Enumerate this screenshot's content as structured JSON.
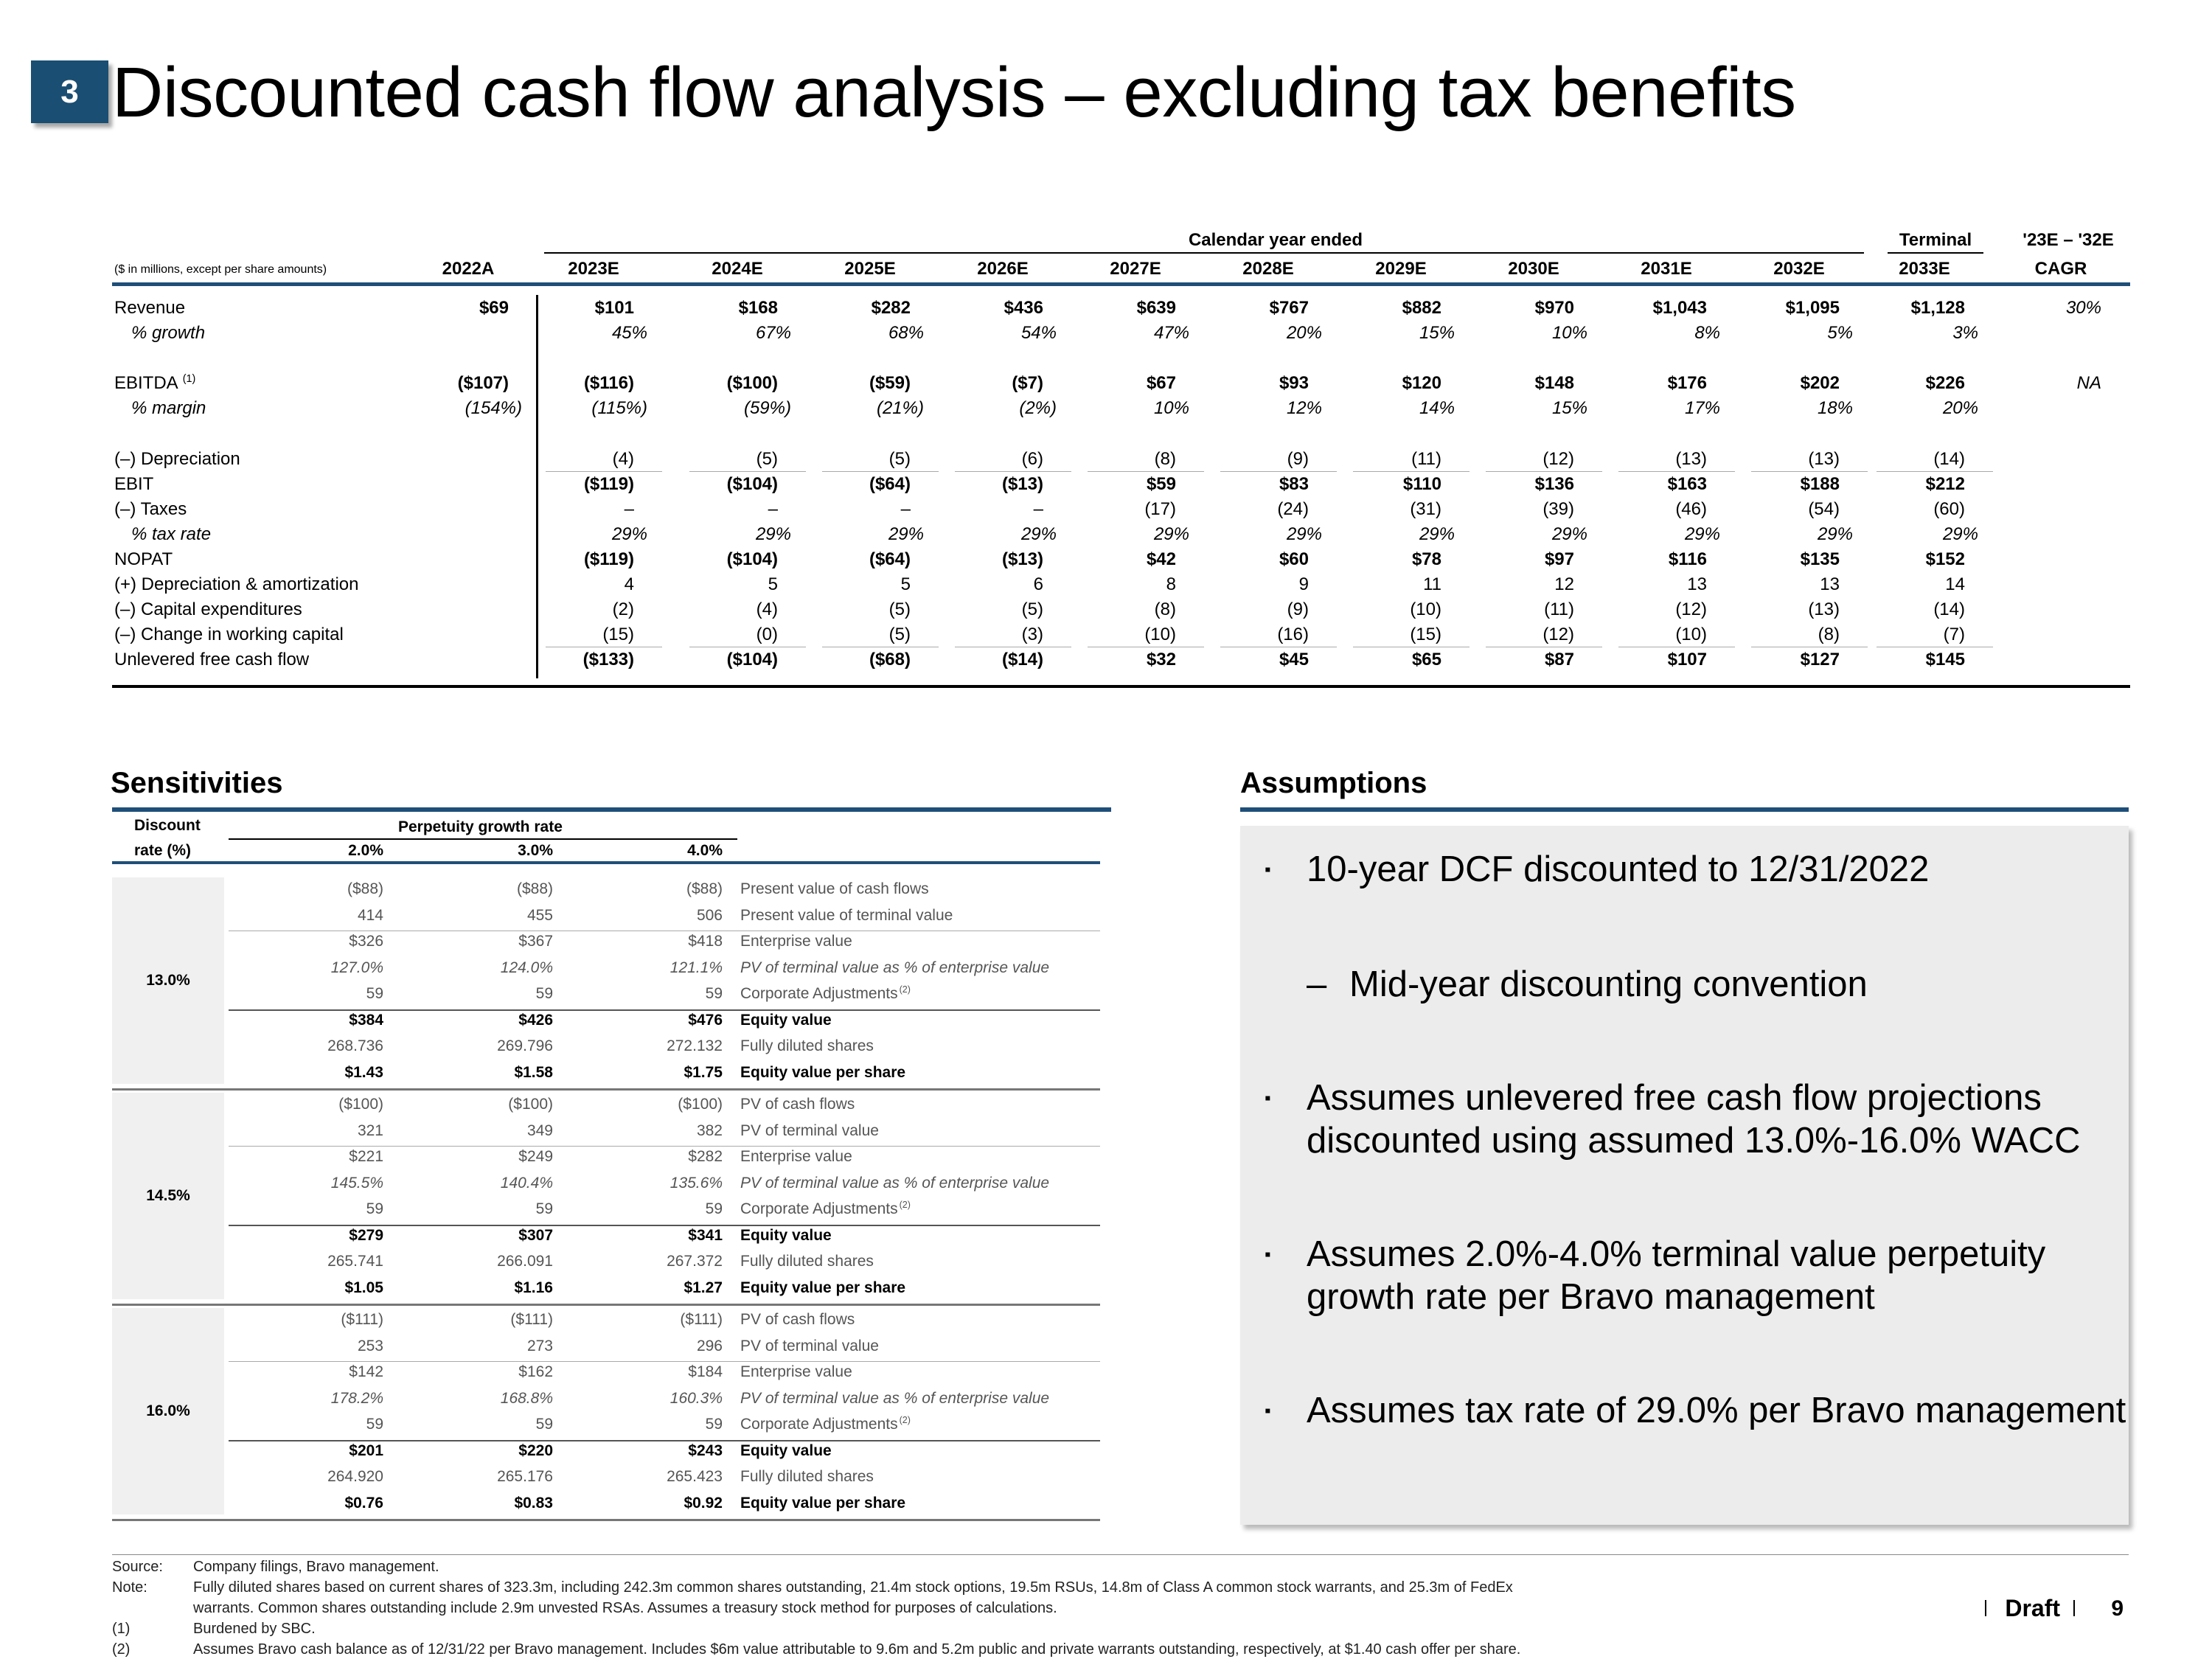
{
  "header": {
    "section_number": "3",
    "title": "Discounted cash flow analysis – excluding tax benefits"
  },
  "dcf": {
    "group_header": "Calendar year ended",
    "terminal_header": "Terminal",
    "cagr_header": "'23E – '32E",
    "units_note": "($ in millions, except per share amounts)",
    "columns": [
      "2022A",
      "2023E",
      "2024E",
      "2025E",
      "2026E",
      "2027E",
      "2028E",
      "2029E",
      "2030E",
      "2031E",
      "2032E",
      "2033E",
      "CAGR"
    ],
    "rows": [
      {
        "label": "Revenue",
        "style": "normal",
        "values": [
          "$69",
          "$101",
          "$168",
          "$282",
          "$436",
          "$639",
          "$767",
          "$882",
          "$970",
          "$1,043",
          "$1,095",
          "$1,128",
          "30%"
        ]
      },
      {
        "label": "% growth",
        "style": "italic",
        "values": [
          "",
          "45%",
          "67%",
          "68%",
          "54%",
          "47%",
          "20%",
          "15%",
          "10%",
          "8%",
          "5%",
          "3%",
          ""
        ]
      },
      {
        "label": "EBITDA",
        "note": "(1)",
        "style": "normal",
        "values": [
          "($107)",
          "($116)",
          "($100)",
          "($59)",
          "($7)",
          "$67",
          "$93",
          "$120",
          "$148",
          "$176",
          "$202",
          "$226",
          "NA"
        ]
      },
      {
        "label": "% margin",
        "style": "italic",
        "values": [
          "(154%)",
          "(115%)",
          "(59%)",
          "(21%)",
          "(2%)",
          "10%",
          "12%",
          "14%",
          "15%",
          "17%",
          "18%",
          "20%",
          ""
        ]
      },
      {
        "label": "(–) Depreciation",
        "style": "normal",
        "values": [
          "",
          "(4)",
          "(5)",
          "(5)",
          "(6)",
          "(8)",
          "(9)",
          "(11)",
          "(12)",
          "(13)",
          "(13)",
          "(14)",
          ""
        ]
      },
      {
        "label": "EBIT",
        "style": "normal",
        "values": [
          "",
          "($119)",
          "($104)",
          "($64)",
          "($13)",
          "$59",
          "$83",
          "$110",
          "$136",
          "$163",
          "$188",
          "$212",
          ""
        ]
      },
      {
        "label": "(–) Taxes",
        "style": "normal",
        "values": [
          "",
          "–",
          "–",
          "–",
          "–",
          "(17)",
          "(24)",
          "(31)",
          "(39)",
          "(46)",
          "(54)",
          "(60)",
          ""
        ]
      },
      {
        "label": "% tax rate",
        "style": "italic",
        "values": [
          "",
          "29%",
          "29%",
          "29%",
          "29%",
          "29%",
          "29%",
          "29%",
          "29%",
          "29%",
          "29%",
          "29%",
          ""
        ]
      },
      {
        "label": "NOPAT",
        "style": "normal",
        "values": [
          "",
          "($119)",
          "($104)",
          "($64)",
          "($13)",
          "$42",
          "$60",
          "$78",
          "$97",
          "$116",
          "$135",
          "$152",
          ""
        ]
      },
      {
        "label": "(+) Depreciation & amortization",
        "style": "normal",
        "values": [
          "",
          "4",
          "5",
          "5",
          "6",
          "8",
          "9",
          "11",
          "12",
          "13",
          "13",
          "14",
          ""
        ]
      },
      {
        "label": "(–) Capital expenditures",
        "style": "normal",
        "values": [
          "",
          "(2)",
          "(4)",
          "(5)",
          "(5)",
          "(8)",
          "(9)",
          "(10)",
          "(11)",
          "(12)",
          "(13)",
          "(14)",
          ""
        ]
      },
      {
        "label": "(–) Change in working capital",
        "style": "normal",
        "values": [
          "",
          "(15)",
          "(0)",
          "(5)",
          "(3)",
          "(10)",
          "(16)",
          "(15)",
          "(12)",
          "(10)",
          "(8)",
          "(7)",
          ""
        ]
      },
      {
        "label": "Unlevered free cash flow",
        "style": "normal",
        "values": [
          "",
          "($133)",
          "($104)",
          "($68)",
          "($14)",
          "$32",
          "$45",
          "$65",
          "$87",
          "$107",
          "$127",
          "$145",
          ""
        ]
      }
    ]
  },
  "sensitivities": {
    "title": "Sensitivities",
    "discount_label_1": "Discount",
    "discount_label_2": "rate (%)",
    "pgr_label": "Perpetuity growth rate",
    "growth_rates": [
      "2.0%",
      "3.0%",
      "4.0%"
    ],
    "blocks": [
      {
        "rate": "13.0%",
        "rows": [
          {
            "values": [
              "($88)",
              "($88)",
              "($88)"
            ],
            "label": "Present value of cash flows",
            "style": "normal"
          },
          {
            "values": [
              "414",
              "455",
              "506"
            ],
            "label": "Present value of terminal value",
            "style": "normal"
          },
          {
            "values": [
              "$326",
              "$367",
              "$418"
            ],
            "label": "Enterprise value",
            "style": "normal"
          },
          {
            "values": [
              "127.0%",
              "124.0%",
              "121.1%"
            ],
            "label": "PV of terminal value as % of enterprise value",
            "style": "italic"
          },
          {
            "values": [
              "59",
              "59",
              "59"
            ],
            "label": "Corporate Adjustments",
            "note": "(2)",
            "style": "normal"
          },
          {
            "values": [
              "$384",
              "$426",
              "$476"
            ],
            "label": "Equity value",
            "style": "bold"
          },
          {
            "values": [
              "268.736",
              "269.796",
              "272.132"
            ],
            "label": "Fully diluted shares",
            "style": "normal"
          },
          {
            "values": [
              "$1.43",
              "$1.58",
              "$1.75"
            ],
            "label": "Equity value per share",
            "style": "bold"
          }
        ]
      },
      {
        "rate": "14.5%",
        "rows": [
          {
            "values": [
              "($100)",
              "($100)",
              "($100)"
            ],
            "label": "PV of cash flows",
            "style": "normal"
          },
          {
            "values": [
              "321",
              "349",
              "382"
            ],
            "label": "PV of terminal value",
            "style": "normal"
          },
          {
            "values": [
              "$221",
              "$249",
              "$282"
            ],
            "label": "Enterprise value",
            "style": "normal"
          },
          {
            "values": [
              "145.5%",
              "140.4%",
              "135.6%"
            ],
            "label": "PV of terminal value as % of enterprise value",
            "style": "italic"
          },
          {
            "values": [
              "59",
              "59",
              "59"
            ],
            "label": "Corporate Adjustments",
            "note": "(2)",
            "style": "normal"
          },
          {
            "values": [
              "$279",
              "$307",
              "$341"
            ],
            "label": "Equity value",
            "style": "bold"
          },
          {
            "values": [
              "265.741",
              "266.091",
              "267.372"
            ],
            "label": "Fully diluted shares",
            "style": "normal"
          },
          {
            "values": [
              "$1.05",
              "$1.16",
              "$1.27"
            ],
            "label": "Equity value per share",
            "style": "bold"
          }
        ]
      },
      {
        "rate": "16.0%",
        "rows": [
          {
            "values": [
              "($111)",
              "($111)",
              "($111)"
            ],
            "label": "PV of cash flows",
            "style": "normal"
          },
          {
            "values": [
              "253",
              "273",
              "296"
            ],
            "label": "PV of terminal value",
            "style": "normal"
          },
          {
            "values": [
              "$142",
              "$162",
              "$184"
            ],
            "label": "Enterprise value",
            "style": "normal"
          },
          {
            "values": [
              "178.2%",
              "168.8%",
              "160.3%"
            ],
            "label": "PV of terminal value as % of enterprise value",
            "style": "italic"
          },
          {
            "values": [
              "59",
              "59",
              "59"
            ],
            "label": "Corporate Adjustments",
            "note": "(2)",
            "style": "normal"
          },
          {
            "values": [
              "$201",
              "$220",
              "$243"
            ],
            "label": "Equity value",
            "style": "bold"
          },
          {
            "values": [
              "264.920",
              "265.176",
              "265.423"
            ],
            "label": "Fully diluted shares",
            "style": "normal"
          },
          {
            "values": [
              "$0.76",
              "$0.83",
              "$0.92"
            ],
            "label": "Equity value per share",
            "style": "bold"
          }
        ]
      }
    ]
  },
  "assumptions": {
    "title": "Assumptions",
    "bullet_1": "10-year DCF discounted to 12/31/2022",
    "sub_bullet_dash": "–",
    "sub_bullet_1": "Mid-year discounting convention",
    "bullet_2_line1": "Assumes unlevered free cash flow projections",
    "bullet_2_line2": "discounted using assumed 13.0%-16.0% WACC",
    "bullet_3_line1": "Assumes 2.0%-4.0% terminal value perpetuity",
    "bullet_3_line2": "growth rate per Bravo management",
    "bullet_4": "Assumes tax rate of 29.0% per Bravo management",
    "bullet_glyph": "▪"
  },
  "footer": {
    "source_label": "Source:",
    "source_text": "Company filings, Bravo management.",
    "note_label": "Note:",
    "note_text_1": "Fully diluted shares based on current shares of 323.3m, including 242.3m common shares outstanding, 21.4m stock options, 19.5m RSUs, 14.8m of Class A common stock warrants, and 25.3m of FedEx",
    "note_text_2": "warrants. Common shares outstanding include 2.9m unvested RSAs. Assumes a treasury stock method for purposes of calculations.",
    "fn1_label": "(1)",
    "fn1_text": "Burdened by SBC.",
    "fn2_label": "(2)",
    "fn2_text": "Assumes Bravo cash balance as of 12/31/22 per Bravo management. Includes $6m value attributable to 9.6m and 5.2m public and private warrants outstanding, respectively, at $1.40 cash offer per share.",
    "draft_label": "Draft",
    "page_number": "9"
  },
  "colors": {
    "accent_navy": "#1a4e72",
    "rule_blue": "#1f4e79",
    "panel_gray": "#ececec"
  }
}
